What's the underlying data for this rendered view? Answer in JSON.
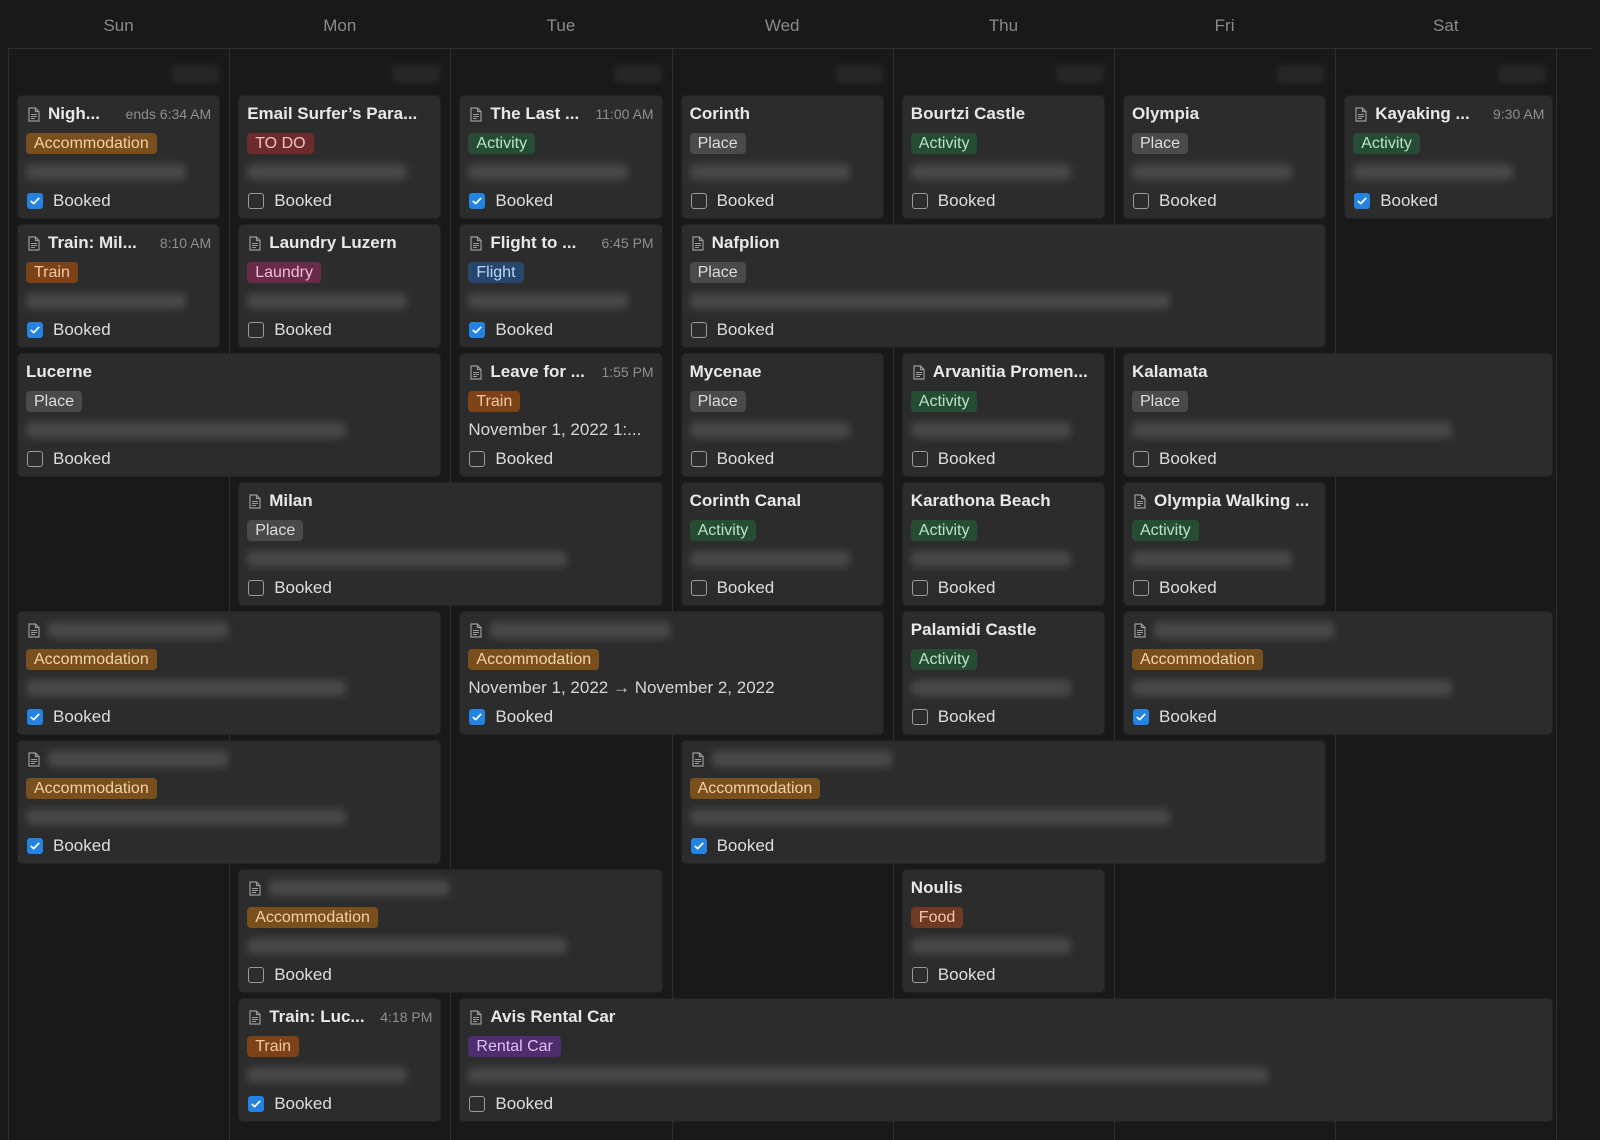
{
  "days": [
    "Sun",
    "Mon",
    "Tue",
    "Wed",
    "Thu",
    "Fri",
    "Sat"
  ],
  "booked_label": "Booked",
  "colors": {
    "background": "#191919",
    "card": "#2c2c2c",
    "checkbox_checked": "#2383e2",
    "tag_accommodation": "#7a4f1e",
    "tag_activity": "#264d34",
    "tag_place": "#4a4a4a",
    "tag_train": "#7d4217",
    "tag_todo": "#6e2b2b",
    "tag_laundry": "#6a2a4a",
    "tag_flight": "#28456e",
    "tag_food": "#6e3a22",
    "tag_rental": "#4f2d6e"
  },
  "events": [
    {
      "title": "Nigh...",
      "time": "ends 6:34 AM",
      "tag": "Accommodation",
      "tag_style": "accommodation",
      "booked": true,
      "icon": "page-icon",
      "col": 0,
      "span": 1,
      "row": 0
    },
    {
      "title": "Email Surfer’s Para...",
      "tag": "TO DO",
      "tag_style": "todo",
      "booked": false,
      "col": 1,
      "span": 1,
      "row": 0
    },
    {
      "title": "The Last ...",
      "time": "11:00 AM",
      "tag": "Activity",
      "tag_style": "activity",
      "booked": true,
      "icon": "page-icon",
      "col": 2,
      "span": 1,
      "row": 0
    },
    {
      "title": "Corinth",
      "tag": "Place",
      "tag_style": "place",
      "booked": false,
      "col": 3,
      "span": 1,
      "row": 0
    },
    {
      "title": "Bourtzi Castle",
      "tag": "Activity",
      "tag_style": "activity",
      "booked": false,
      "col": 4,
      "span": 1,
      "row": 0
    },
    {
      "title": "Olympia",
      "tag": "Place",
      "tag_style": "place",
      "booked": false,
      "col": 5,
      "span": 1,
      "row": 0
    },
    {
      "title": "Kayaking ...",
      "time": "9:30 AM",
      "tag": "Activity",
      "tag_style": "activity",
      "booked": true,
      "icon": "page-icon",
      "col": 6,
      "span": 1,
      "row": 0
    },
    {
      "title": "Train: Mil...",
      "time": "8:10 AM",
      "tag": "Train",
      "tag_style": "train",
      "booked": true,
      "icon": "page-icon",
      "col": 0,
      "span": 1,
      "row": 1
    },
    {
      "title": "Laundry Luzern",
      "tag": "Laundry",
      "tag_style": "laundry",
      "booked": false,
      "icon": "page-icon",
      "col": 1,
      "span": 1,
      "row": 1
    },
    {
      "title": "Flight to ...",
      "time": "6:45 PM",
      "tag": "Flight",
      "tag_style": "flight",
      "booked": true,
      "icon": "page-icon",
      "col": 2,
      "span": 1,
      "row": 1
    },
    {
      "title": "Nafplion",
      "tag": "Place",
      "tag_style": "place",
      "booked": false,
      "icon": "page-icon",
      "col": 3,
      "span": 3,
      "row": 1
    },
    {
      "title": "Lucerne",
      "tag": "Place",
      "tag_style": "place",
      "booked": false,
      "col": 0,
      "span": 2,
      "row": 2
    },
    {
      "title": "Leave for ...",
      "time": "1:55 PM",
      "tag": "Train",
      "tag_style": "train",
      "detail": "November 1, 2022 1:...",
      "booked": false,
      "icon": "page-icon",
      "col": 2,
      "span": 1,
      "row": 2
    },
    {
      "title": "Mycenae",
      "tag": "Place",
      "tag_style": "place",
      "booked": false,
      "col": 3,
      "span": 1,
      "row": 2
    },
    {
      "title": "Arvanitia Promen...",
      "tag": "Activity",
      "tag_style": "activity",
      "booked": false,
      "icon": "page-icon",
      "col": 4,
      "span": 1,
      "row": 2
    },
    {
      "title": "Kalamata",
      "tag": "Place",
      "tag_style": "place",
      "booked": false,
      "col": 5,
      "span": 2,
      "row": 2
    },
    {
      "title": "Milan",
      "tag": "Place",
      "tag_style": "place",
      "booked": false,
      "icon": "page-icon",
      "col": 1,
      "span": 2,
      "row": 3
    },
    {
      "title": "Corinth Canal",
      "tag": "Activity",
      "tag_style": "activity",
      "booked": false,
      "col": 3,
      "span": 1,
      "row": 3
    },
    {
      "title": "Karathona Beach",
      "tag": "Activity",
      "tag_style": "activity",
      "booked": false,
      "col": 4,
      "span": 1,
      "row": 3
    },
    {
      "title": "Olympia Walking ...",
      "tag": "Activity",
      "tag_style": "activity",
      "booked": false,
      "icon": "page-icon",
      "col": 5,
      "span": 1,
      "row": 3
    },
    {
      "title": "",
      "tag": "Accommodation",
      "tag_style": "accommodation",
      "booked": true,
      "icon": "page-icon",
      "col": 0,
      "span": 2,
      "row": 4
    },
    {
      "title": "",
      "tag": "Accommodation",
      "tag_style": "accommodation",
      "detail": "November 1, 2022 → November 2, 2022",
      "booked": true,
      "icon": "page-icon",
      "col": 2,
      "span": 2,
      "row": 4
    },
    {
      "title": "Palamidi Castle",
      "tag": "Activity",
      "tag_style": "activity",
      "booked": false,
      "col": 4,
      "span": 1,
      "row": 4
    },
    {
      "title": "",
      "tag": "Accommodation",
      "tag_style": "accommodation",
      "booked": true,
      "icon": "page-icon",
      "col": 5,
      "span": 2,
      "row": 4
    },
    {
      "title": "",
      "tag": "Accommodation",
      "tag_style": "accommodation",
      "booked": true,
      "icon": "page-icon",
      "col": 0,
      "span": 2,
      "row": 5
    },
    {
      "title": "",
      "tag": "Accommodation",
      "tag_style": "accommodation",
      "booked": true,
      "icon": "page-icon",
      "col": 3,
      "span": 3,
      "row": 5
    },
    {
      "title": "",
      "tag": "Accommodation",
      "tag_style": "accommodation",
      "booked": false,
      "icon": "page-icon",
      "col": 1,
      "span": 2,
      "row": 6
    },
    {
      "title": "Noulis",
      "tag": "Food",
      "tag_style": "food",
      "booked": false,
      "col": 4,
      "span": 1,
      "row": 6
    },
    {
      "title": "Train: Luc...",
      "time": "4:18 PM",
      "tag": "Train",
      "tag_style": "train",
      "booked": true,
      "icon": "page-icon",
      "col": 1,
      "span": 1,
      "row": 7
    },
    {
      "title": "Avis Rental Car",
      "tag": "Rental Car",
      "tag_style": "rental",
      "booked": false,
      "icon": "page-icon",
      "col": 2,
      "span": 5,
      "row": 7
    }
  ]
}
